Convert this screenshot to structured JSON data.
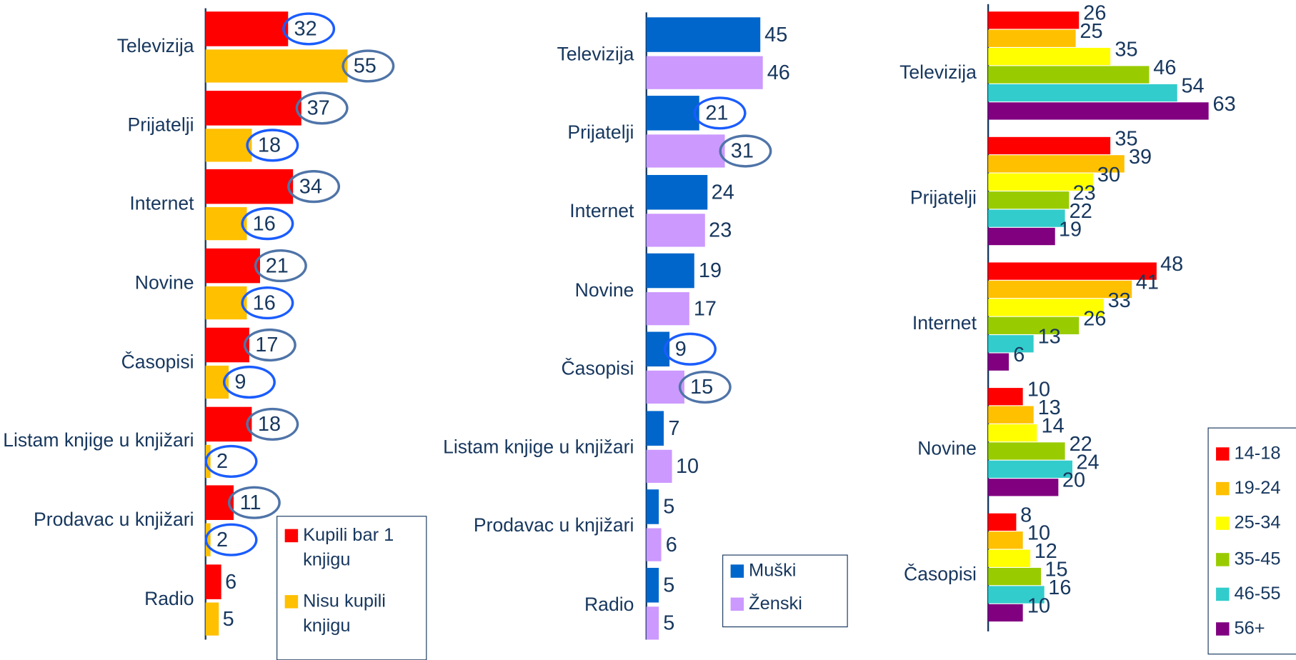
{
  "chart_data": [
    {
      "type": "bar",
      "orientation": "horizontal",
      "categories": [
        "Televizija",
        "Prijatelji",
        "Internet",
        "Novine",
        "Časopisi",
        "Listam knjige u knjižari",
        "Prodavac u knjižari",
        "Radio"
      ],
      "series": [
        {
          "name": "Kupili bar 1 knjigu",
          "color": "#ff0000",
          "values": [
            32,
            37,
            34,
            21,
            17,
            18,
            11,
            6
          ]
        },
        {
          "name": "Nisu kupili knjigu",
          "color": "#ffc000",
          "values": [
            55,
            18,
            16,
            16,
            9,
            2,
            2,
            5
          ]
        }
      ],
      "highlighted_categories": [
        "Televizija",
        "Prijatelji",
        "Internet",
        "Novine",
        "Časopisi",
        "Listam knjige u knjižari",
        "Prodavac u knjižari"
      ]
    },
    {
      "type": "bar",
      "orientation": "horizontal",
      "categories": [
        "Televizija",
        "Prijatelji",
        "Internet",
        "Novine",
        "Časopisi",
        "Listam knjige u knjižari",
        "Prodavac u knjižari",
        "Radio"
      ],
      "series": [
        {
          "name": "Muški",
          "color": "#0066cc",
          "values": [
            45,
            21,
            24,
            19,
            9,
            7,
            5,
            5
          ]
        },
        {
          "name": "Ženski",
          "color": "#cc99ff",
          "values": [
            46,
            31,
            23,
            17,
            15,
            10,
            6,
            5
          ]
        }
      ],
      "highlighted_categories": [
        "Prijatelji",
        "Časopisi"
      ]
    },
    {
      "type": "bar",
      "orientation": "horizontal",
      "categories": [
        "Televizija",
        "Prijatelji",
        "Internet",
        "Novine",
        "Časopisi"
      ],
      "series": [
        {
          "name": "14-18",
          "color": "#ff0000",
          "values": [
            26,
            35,
            48,
            10,
            8
          ]
        },
        {
          "name": "19-24",
          "color": "#ffc000",
          "values": [
            25,
            39,
            41,
            13,
            10
          ]
        },
        {
          "name": "25-34",
          "color": "#ffff00",
          "values": [
            35,
            30,
            33,
            14,
            12
          ]
        },
        {
          "name": "35-45",
          "color": "#99cc00",
          "values": [
            46,
            23,
            26,
            22,
            15
          ]
        },
        {
          "name": "46-55",
          "color": "#33cccc",
          "values": [
            54,
            22,
            13,
            24,
            16
          ]
        },
        {
          "name": "56+",
          "color": "#800080",
          "values": [
            63,
            19,
            6,
            20,
            10
          ]
        }
      ]
    }
  ]
}
